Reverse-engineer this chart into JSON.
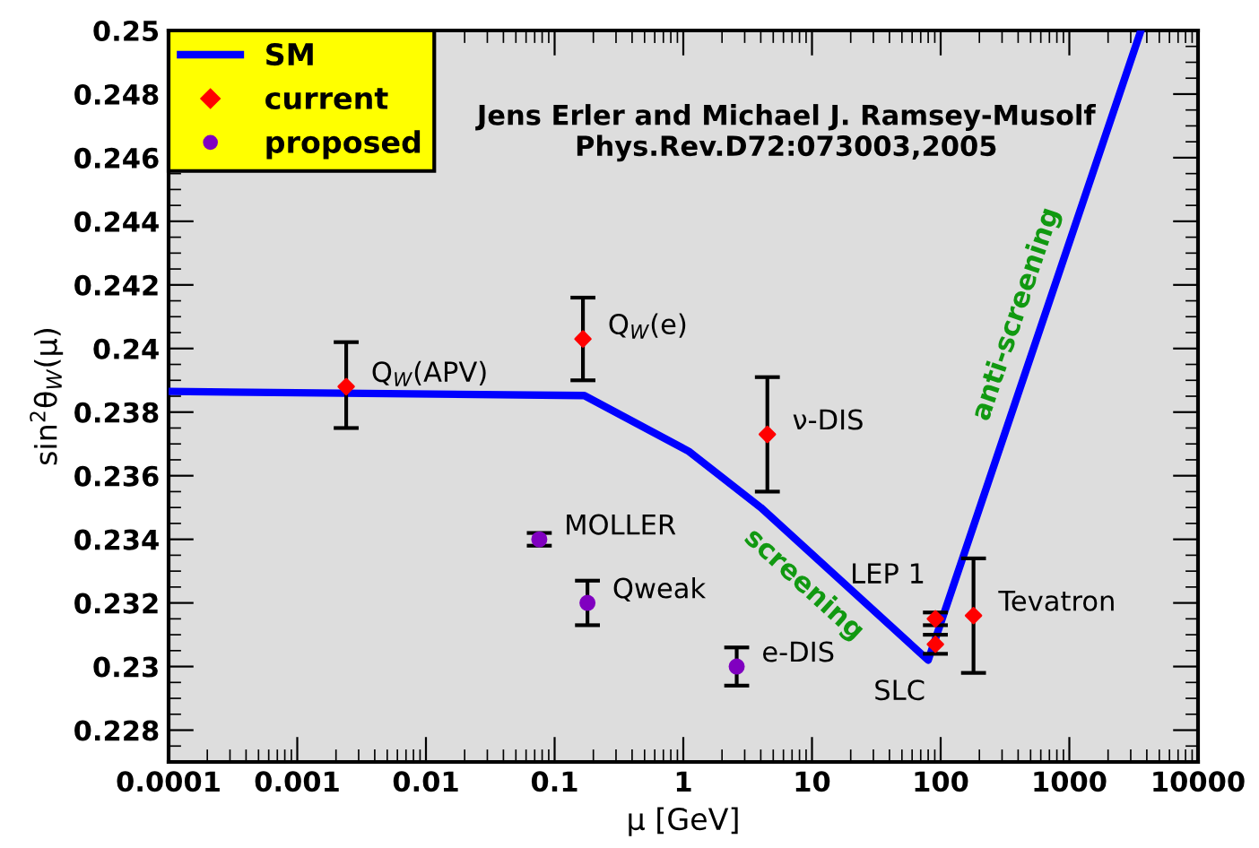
{
  "chart_data": {
    "type": "scatter",
    "xlabel": "μ [GeV]",
    "ylabel": "sin$^{2}$θ$_{W}$(μ)",
    "log": "x",
    "xlim": [
      0.0001,
      10000
    ],
    "ylim": [
      0.227,
      0.25
    ],
    "xticks": [
      {
        "value": 0.0001,
        "label": "0.0001"
      },
      {
        "value": 0.001,
        "label": "0.001"
      },
      {
        "value": 0.01,
        "label": "0.01"
      },
      {
        "value": 0.1,
        "label": "0.1"
      },
      1,
      10,
      100,
      1000,
      10000
    ],
    "yticks": [
      0.228,
      0.23,
      0.232,
      0.234,
      0.236,
      0.238,
      0.24,
      0.242,
      0.244,
      0.246,
      0.248,
      0.25
    ],
    "grid": false,
    "legend": "top left",
    "series": [
      {
        "name": "SM",
        "type": "line",
        "color": "#0000ff",
        "marker": "none",
        "x": [
          0.0001,
          0.17,
          1.1,
          4,
          80,
          3600
        ],
        "values": [
          0.23865,
          0.23852,
          0.23677,
          0.235,
          0.2302,
          0.25
        ]
      },
      {
        "name": "current",
        "color": "#ff0000",
        "marker": "diamond",
        "x": [
          0.0024,
          0.166,
          4.5,
          91,
          91,
          180
        ],
        "values": [
          0.2388,
          0.2403,
          0.2373,
          0.2315,
          0.2307,
          0.2316
        ],
        "errors": [
          [
            0.2375,
            0.2402
          ],
          [
            0.239,
            0.2416
          ],
          [
            0.2355,
            0.2391
          ],
          [
            0.2313,
            0.2317
          ],
          [
            0.2304,
            0.231
          ],
          [
            0.2298,
            0.2334
          ]
        ]
      },
      {
        "name": "proposed",
        "color": "#8000c0",
        "marker": "circle",
        "x": [
          0.076,
          0.18,
          2.6
        ],
        "values": [
          0.234,
          0.232,
          0.23
        ],
        "errors": [
          [
            0.2338,
            0.2342
          ],
          [
            0.2313,
            0.2327
          ],
          [
            0.2294,
            0.2306
          ]
        ]
      }
    ],
    "annotations": [
      {
        "text": "Q$_{W}$(APV)",
        "x": 0.0024,
        "y": 0.2388
      },
      {
        "text": "Q$_{W}$(e)",
        "x": 0.166,
        "y": 0.2403
      },
      {
        "text": "ν-DIS",
        "x": 4.5,
        "y": 0.2373
      },
      {
        "text": "MOLLER",
        "x": 0.076,
        "y": 0.234
      },
      {
        "text": "Qweak",
        "x": 0.18,
        "y": 0.232
      },
      {
        "text": "e-DIS",
        "x": 2.6,
        "y": 0.23
      },
      {
        "text": "LEP 1",
        "x": 91,
        "y": 0.2315
      },
      {
        "text": "SLC",
        "x": 91,
        "y": 0.2307
      },
      {
        "text": "Tevatron",
        "x": 180,
        "y": 0.2316
      },
      {
        "text": "screening",
        "x": 12,
        "y": 0.2332
      },
      {
        "text": "anti-screening",
        "x": 620,
        "y": 0.2408
      },
      "Jens Erler and Michael J. Ramsey-Musolf\nPhys.Rev.D72:073003,2005"
    ]
  }
}
